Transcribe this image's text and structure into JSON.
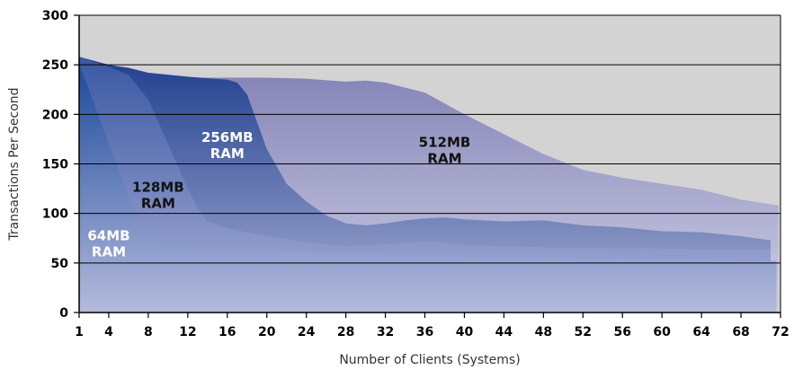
{
  "chart_data": {
    "type": "area",
    "title": "",
    "xlabel": "Number of Clients (Systems)",
    "ylabel": "Transactions Per Second",
    "xlim": [
      1,
      72
    ],
    "ylim": [
      0,
      300
    ],
    "x_ticks": [
      1,
      4,
      8,
      12,
      16,
      20,
      24,
      28,
      32,
      36,
      40,
      44,
      48,
      52,
      56,
      60,
      64,
      68,
      72
    ],
    "y_ticks": [
      0,
      50,
      100,
      150,
      200,
      250,
      300
    ],
    "grid": true,
    "background_color": "#d4d3d3",
    "series": [
      {
        "name": "512MB RAM",
        "label_lines": [
          "512MB",
          "RAM"
        ],
        "label_at": [
          38,
          167
        ],
        "color_top": "#7f7fb4",
        "color_bottom": "#cfd0e6",
        "label_color": "#111111",
        "points": [
          [
            1,
            258
          ],
          [
            4,
            250
          ],
          [
            8,
            240
          ],
          [
            12,
            237
          ],
          [
            16,
            237
          ],
          [
            20,
            237
          ],
          [
            24,
            236
          ],
          [
            28,
            233
          ],
          [
            30,
            234
          ],
          [
            32,
            232
          ],
          [
            36,
            222
          ],
          [
            40,
            200
          ],
          [
            44,
            180
          ],
          [
            48,
            160
          ],
          [
            52,
            144
          ],
          [
            56,
            136
          ],
          [
            60,
            130
          ],
          [
            64,
            124
          ],
          [
            68,
            114
          ],
          [
            71.8,
            108
          ]
        ]
      },
      {
        "name": "256MB RAM",
        "label_lines": [
          "256MB",
          "RAM"
        ],
        "label_at": [
          16,
          172
        ],
        "color_top": "#1f3f8f",
        "color_bottom": "#a8aed3",
        "label_color": "#ffffff",
        "points": [
          [
            1,
            258
          ],
          [
            4,
            250
          ],
          [
            6,
            247
          ],
          [
            8,
            242
          ],
          [
            12,
            238
          ],
          [
            16,
            235
          ],
          [
            17,
            232
          ],
          [
            18,
            220
          ],
          [
            20,
            165
          ],
          [
            22,
            130
          ],
          [
            24,
            112
          ],
          [
            26,
            98
          ],
          [
            28,
            90
          ],
          [
            30,
            88
          ],
          [
            32,
            90
          ],
          [
            34,
            93
          ],
          [
            36,
            95
          ],
          [
            38,
            96
          ],
          [
            40,
            94
          ],
          [
            44,
            92
          ],
          [
            48,
            93
          ],
          [
            52,
            88
          ],
          [
            56,
            86
          ],
          [
            60,
            82
          ],
          [
            64,
            81
          ],
          [
            68,
            77
          ],
          [
            71,
            73
          ]
        ]
      },
      {
        "name": "128MB RAM",
        "label_lines": [
          "128MB",
          "RAM"
        ],
        "label_at": [
          9,
          122
        ],
        "color_top": "#3a58a4",
        "color_bottom": "#aab0d6",
        "label_color": "#111111",
        "points": [
          [
            1,
            258
          ],
          [
            4,
            248
          ],
          [
            6,
            240
          ],
          [
            8,
            215
          ],
          [
            10,
            170
          ],
          [
            12,
            125
          ],
          [
            13,
            105
          ],
          [
            14,
            92
          ],
          [
            16,
            85
          ],
          [
            20,
            77
          ],
          [
            24,
            71
          ],
          [
            28,
            67
          ],
          [
            32,
            69
          ],
          [
            36,
            72
          ],
          [
            38,
            71
          ],
          [
            40,
            68
          ],
          [
            48,
            66
          ],
          [
            56,
            65
          ],
          [
            64,
            64
          ],
          [
            71,
            64
          ]
        ]
      },
      {
        "name": "64MB RAM",
        "label_lines": [
          "64MB",
          "RAM"
        ],
        "label_at": [
          4,
          73
        ],
        "color_top": "#1d4b9e",
        "color_bottom": "#b4badb",
        "label_color": "#ffffff",
        "points": [
          [
            1,
            250
          ],
          [
            2,
            225
          ],
          [
            4,
            170
          ],
          [
            6,
            118
          ],
          [
            7,
            90
          ],
          [
            8,
            75
          ],
          [
            9,
            70
          ],
          [
            11,
            67
          ],
          [
            16,
            64
          ],
          [
            24,
            62
          ],
          [
            32,
            60
          ],
          [
            40,
            57
          ],
          [
            48,
            56
          ],
          [
            56,
            54
          ],
          [
            64,
            53
          ],
          [
            71.6,
            52
          ]
        ]
      }
    ]
  }
}
